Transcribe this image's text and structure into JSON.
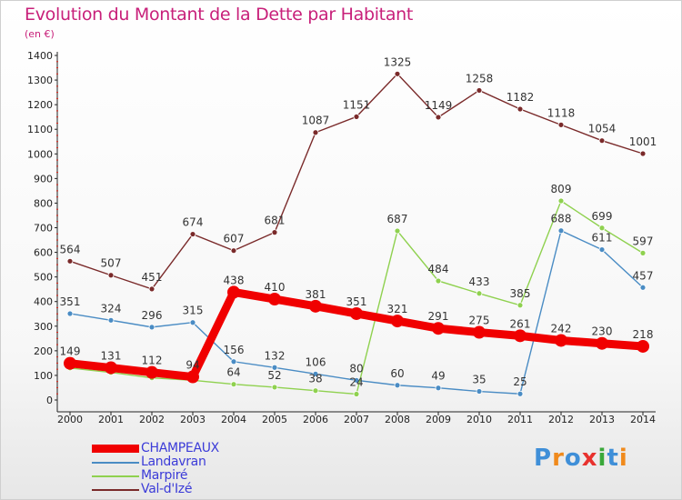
{
  "title": "Evolution du Montant de la Dette par Habitant",
  "unit_label": "(en €)",
  "logo": {
    "text": "Proxiti",
    "letter_colors": [
      "#3f8fd8",
      "#f08a1c",
      "#3f8fd8",
      "#e8322e",
      "#3aa83a",
      "#3f8fd8",
      "#f08a1c"
    ]
  },
  "chart_data": {
    "type": "line",
    "title": "Evolution du Montant de la Dette par Habitant",
    "ylabel": "(en €)",
    "xlabel": "",
    "ylim": [
      0,
      1400
    ],
    "yticks": [
      0,
      100,
      200,
      300,
      400,
      500,
      600,
      700,
      800,
      900,
      1000,
      1100,
      1200,
      1300,
      1400
    ],
    "grid": false,
    "legend_position": "bottom-left",
    "x": [
      2000,
      2001,
      2002,
      2003,
      2004,
      2005,
      2006,
      2007,
      2008,
      2009,
      2010,
      2011,
      2012,
      2013,
      2014
    ],
    "series": [
      {
        "name": "Val-d'Izé",
        "color": "#7a2a2a",
        "values": [
          564,
          507,
          451,
          674,
          607,
          681,
          1087,
          1151,
          1325,
          1149,
          1258,
          1182,
          1118,
          1054,
          1001
        ],
        "labels": [
          "564",
          "507",
          "451",
          "674",
          "607",
          "681",
          "1087",
          "1151",
          "1325",
          "1149",
          "1258",
          "1182",
          "1118",
          "1054",
          "1001"
        ]
      },
      {
        "name": "Landavran",
        "color": "#4a8cc4",
        "values": [
          351,
          324,
          296,
          315,
          156,
          132,
          106,
          80,
          60,
          49,
          35,
          25,
          688,
          611,
          457
        ],
        "labels": [
          "351",
          "324",
          "296",
          "315",
          "156",
          "132",
          "106",
          "80",
          "60",
          "49",
          "35",
          "25",
          "688",
          "611",
          "457"
        ]
      },
      {
        "name": "Marpiré",
        "color": "#8fd14f",
        "values": [
          130,
          112,
          90,
          80,
          64,
          52,
          38,
          24,
          687,
          484,
          433,
          385,
          809,
          699,
          597
        ],
        "labels": [
          "",
          "",
          "",
          "",
          "64",
          "52",
          "38",
          "24",
          "687",
          "484",
          "433",
          "385",
          "809",
          "699",
          "597"
        ]
      },
      {
        "name": "CHAMPEAUX",
        "color": "#f00000",
        "values": [
          149,
          131,
          112,
          94,
          438,
          410,
          381,
          351,
          321,
          291,
          275,
          261,
          242,
          230,
          218
        ],
        "labels": [
          "149",
          "131",
          "112",
          "94",
          "438",
          "410",
          "381",
          "351",
          "321",
          "291",
          "275",
          "261",
          "242",
          "230",
          "218"
        ]
      }
    ],
    "legend": [
      {
        "name": "CHAMPEAUX",
        "color": "#f00000",
        "thick": true
      },
      {
        "name": "Landavran",
        "color": "#4a8cc4",
        "thick": false
      },
      {
        "name": "Marpiré",
        "color": "#8fd14f",
        "thick": false
      },
      {
        "name": "Val-d'Izé",
        "color": "#7a2a2a",
        "thick": false
      }
    ]
  }
}
